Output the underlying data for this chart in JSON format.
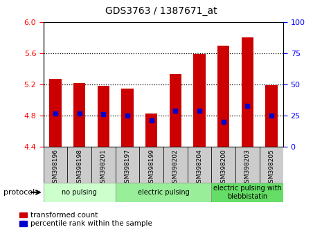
{
  "title": "GDS3763 / 1387671_at",
  "samples": [
    "GSM398196",
    "GSM398198",
    "GSM398201",
    "GSM398197",
    "GSM398199",
    "GSM398202",
    "GSM398204",
    "GSM398200",
    "GSM398203",
    "GSM398205"
  ],
  "transformed_counts": [
    5.27,
    5.22,
    5.18,
    5.15,
    4.83,
    5.33,
    5.59,
    5.7,
    5.8,
    5.19
  ],
  "percentile_ranks_pct": [
    27,
    27,
    26,
    25,
    21,
    29,
    29,
    20,
    33,
    25
  ],
  "ylim_left": [
    4.4,
    6.0
  ],
  "ylim_right": [
    0,
    100
  ],
  "yticks_left": [
    4.4,
    4.8,
    5.2,
    5.6,
    6.0
  ],
  "yticks_right": [
    0,
    25,
    50,
    75,
    100
  ],
  "bar_color": "#cc0000",
  "dot_color": "#0000cc",
  "groups": [
    {
      "label": "no pulsing",
      "start": 0,
      "end": 3,
      "color": "#ccffcc"
    },
    {
      "label": "electric pulsing",
      "start": 3,
      "end": 7,
      "color": "#99ee99"
    },
    {
      "label": "electric pulsing with\nblebbistatin",
      "start": 7,
      "end": 10,
      "color": "#66dd66"
    }
  ],
  "legend_labels": [
    "transformed count",
    "percentile rank within the sample"
  ],
  "protocol_label": "protocol",
  "background_color": "#ffffff",
  "plot_bg_color": "#ffffff",
  "label_bg_color": "#cccccc",
  "grid_dotted_ticks": [
    4.8,
    5.2,
    5.6
  ],
  "bar_width": 0.5
}
